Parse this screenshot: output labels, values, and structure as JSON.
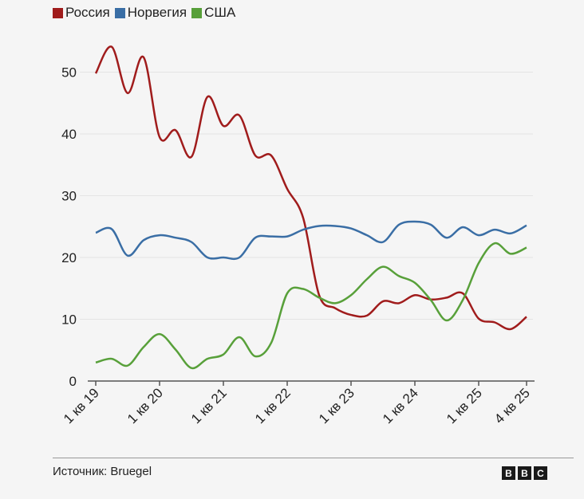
{
  "chart_data": {
    "type": "line",
    "title": "",
    "xlabel": "",
    "ylabel": "",
    "ylim": [
      0,
      55
    ],
    "yticks": [
      0,
      10,
      20,
      30,
      40,
      50
    ],
    "grid": true,
    "legend_position": "top-left",
    "x_count": 28,
    "xtick_labels": [
      {
        "index": 0,
        "label": "1 кв 19"
      },
      {
        "index": 4,
        "label": "1 кв 20"
      },
      {
        "index": 8,
        "label": "1 кв 21"
      },
      {
        "index": 12,
        "label": "1 кв 22"
      },
      {
        "index": 16,
        "label": "1 кв 23"
      },
      {
        "index": 20,
        "label": "1 кв 24"
      },
      {
        "index": 24,
        "label": "1 кв 25"
      },
      {
        "index": 27,
        "label": "4 кв 25"
      }
    ],
    "series": [
      {
        "name": "Россия",
        "color": "#a01c1c",
        "values": [
          49.8,
          54.1,
          46.6,
          52.4,
          39.5,
          40.6,
          36.3,
          46.0,
          41.3,
          43.0,
          36.5,
          36.5,
          31.1,
          26.4,
          13.9,
          11.8,
          10.7,
          10.6,
          12.9,
          12.6,
          13.9,
          13.2,
          13.5,
          14.2,
          10.1,
          9.5,
          8.4,
          10.4
        ]
      },
      {
        "name": "Норвегия",
        "color": "#3a6ea5",
        "values": [
          24.0,
          24.6,
          20.3,
          22.8,
          23.6,
          23.2,
          22.5,
          20.0,
          20.0,
          20.0,
          23.2,
          23.4,
          23.4,
          24.5,
          25.1,
          25.1,
          24.7,
          23.6,
          22.5,
          25.3,
          25.8,
          25.3,
          23.2,
          24.9,
          23.6,
          24.5,
          23.9,
          25.2
        ]
      },
      {
        "name": "США",
        "color": "#58a03a",
        "values": [
          3.0,
          3.6,
          2.5,
          5.5,
          7.6,
          5.1,
          2.1,
          3.6,
          4.3,
          7.1,
          4.0,
          6.2,
          14.2,
          14.9,
          13.5,
          12.6,
          13.9,
          16.5,
          18.5,
          17.0,
          15.9,
          13.1,
          9.8,
          13.1,
          19.1,
          22.3,
          20.6,
          21.6
        ]
      }
    ]
  },
  "footer": {
    "source": "Источник: Bruegel",
    "logo": [
      "B",
      "B",
      "C"
    ]
  }
}
